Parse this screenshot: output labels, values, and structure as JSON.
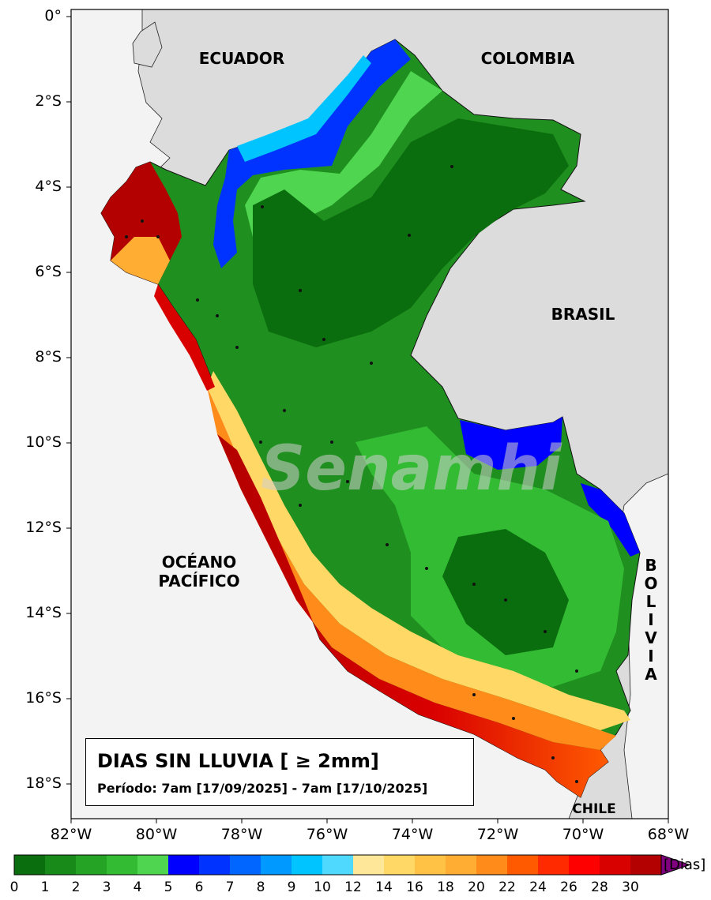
{
  "map": {
    "y_ticks": [
      "0°",
      "2°S",
      "4°S",
      "6°S",
      "8°S",
      "10°S",
      "12°S",
      "14°S",
      "16°S",
      "18°S"
    ],
    "x_ticks": [
      "82°W",
      "80°W",
      "78°W",
      "76°W",
      "74°W",
      "72°W",
      "70°W",
      "68°W"
    ],
    "labels": {
      "ecuador": "ECUADOR",
      "colombia": "COLOMBIA",
      "brasil": "BRASIL",
      "oceano_line1": "OCÉANO",
      "oceano_line2": "PACÍFICO",
      "bolivia": [
        "B",
        "O",
        "L",
        "I",
        "V",
        "I",
        "A"
      ],
      "chile": "CHILE"
    },
    "watermark": "Senamhi"
  },
  "legend": {
    "title": "DIAS SIN LLUVIA [ ≥ 2mm]",
    "period": "Período: 7am [17/09/2025] - 7am [17/10/2025]"
  },
  "colorbar": {
    "ticks": [
      "0",
      "1",
      "2",
      "3",
      "4",
      "5",
      "6",
      "7",
      "8",
      "9",
      "10",
      "12",
      "14",
      "16",
      "18",
      "20",
      "22",
      "24",
      "26",
      "28",
      "30"
    ],
    "colors": [
      "#0b6e0e",
      "#178a1a",
      "#24a324",
      "#33bb33",
      "#4fd54f",
      "#0000ff",
      "#0033ff",
      "#0066ff",
      "#0099ff",
      "#00c4ff",
      "#4fd9ff",
      "#ffe79a",
      "#ffd866",
      "#ffc244",
      "#ffad33",
      "#ff8c1a",
      "#ff5a00",
      "#ff2a00",
      "#ff0000",
      "#d90000",
      "#b30000"
    ],
    "extend_color": "#800080",
    "units": "[Dias]"
  }
}
